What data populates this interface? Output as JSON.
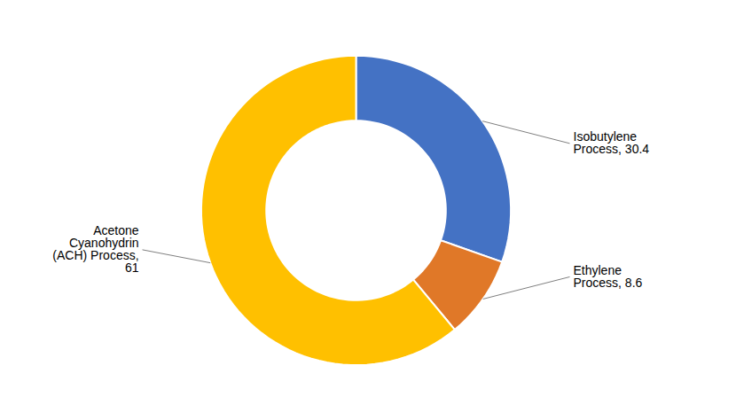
{
  "chart_data": {
    "type": "donut",
    "categories": [
      "Isobutylene\nProcess, 30.4",
      "Ethylene\nProcess, 8.6",
      "Acetone\nCyanohydrin\n(ACH) Process,\n61"
    ],
    "values": [
      30.4,
      8.6,
      61.0
    ],
    "colors": [
      "#4472C4",
      "#E07828",
      "#FFC000"
    ]
  }
}
